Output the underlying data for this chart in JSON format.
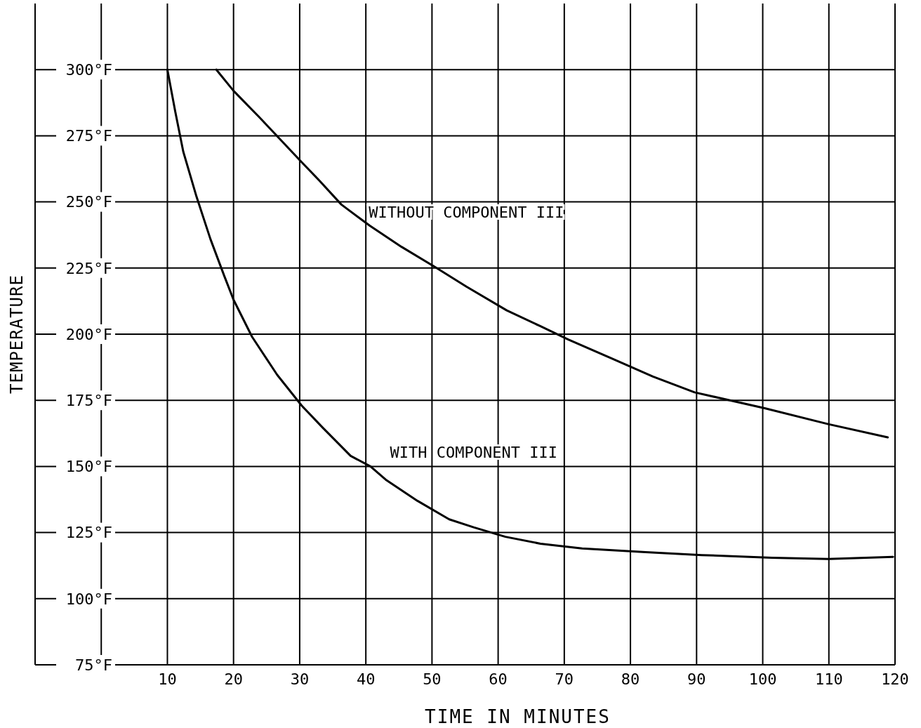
{
  "chart_data": {
    "type": "line",
    "xlabel": "TIME IN MINUTES",
    "ylabel": "TEMPERATURE",
    "xlim": [
      -10,
      120
    ],
    "ylim": [
      75,
      325
    ],
    "xticks": [
      {
        "value": 0,
        "label": null
      },
      10,
      20,
      30,
      40,
      50,
      60,
      70,
      80,
      90,
      100,
      110,
      120
    ],
    "yticks": [
      {
        "value": 75,
        "label": "75°F"
      },
      {
        "value": 100,
        "label": "100°F"
      },
      {
        "value": 125,
        "label": "125°F"
      },
      {
        "value": 150,
        "label": "150°F"
      },
      {
        "value": 175,
        "label": "175°F"
      },
      {
        "value": 200,
        "label": "200°F"
      },
      {
        "value": 225,
        "label": "225°F"
      },
      {
        "value": 250,
        "label": "250°F"
      },
      {
        "value": 275,
        "label": "275°F"
      },
      {
        "value": 300,
        "label": "300°F"
      }
    ],
    "grid": true,
    "marker": "none",
    "line_style": "solid",
    "series": [
      {
        "name": "WITHOUT COMPONENT III",
        "color": "#000000",
        "x": [
          17.4,
          20,
          23.9,
          30.3,
          33,
          36.3,
          40.6,
          45.4,
          50.4,
          55.2,
          61.3,
          66.4,
          70.6,
          77,
          83.4,
          89.7,
          100.3,
          109.9,
          118.9
        ],
        "values": [
          300,
          292,
          282,
          265,
          258,
          249,
          241,
          233,
          225.5,
          218,
          209,
          203,
          198,
          191,
          184,
          178,
          172,
          166,
          161
        ]
      },
      {
        "name": "WITH COMPONENT III",
        "color": "#000000",
        "x": [
          10,
          11.2,
          12.4,
          14.4,
          16.5,
          18.6,
          20,
          22.8,
          26.6,
          30.3,
          33.5,
          37.7,
          40.7,
          43,
          47.8,
          52.6,
          56.3,
          61.1,
          66.4,
          72.7,
          82.3,
          90.8,
          101.4,
          109.9,
          119.7
        ],
        "values": [
          300,
          284,
          269,
          252,
          236,
          222,
          213,
          199,
          184.6,
          173,
          164.6,
          154,
          150,
          145,
          137,
          130,
          127,
          123.4,
          120.8,
          119,
          117.6,
          116.5,
          115.5,
          115,
          115.8
        ]
      }
    ]
  }
}
